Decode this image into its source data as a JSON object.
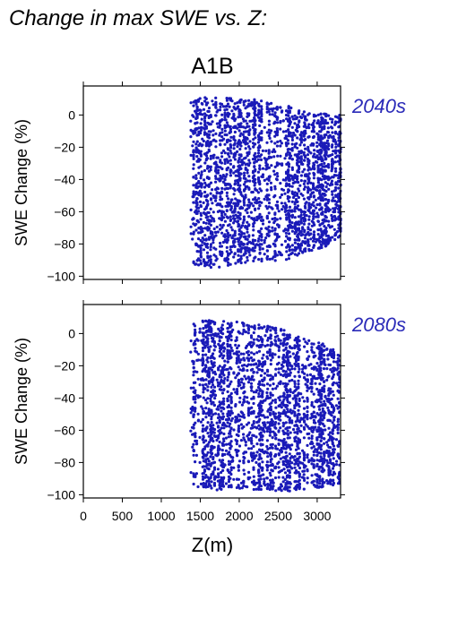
{
  "figure": {
    "title": "Change in max SWE vs. Z:",
    "scenario": "A1B",
    "xlabel": "Z(m)",
    "colors": {
      "points": "#1a1ab8",
      "period_label": "#2a2ab8",
      "axis": "#000000"
    }
  },
  "chart_data": [
    {
      "type": "scatter",
      "period_label": "2040s",
      "ylabel": "SWE Change (%)",
      "xlim": [
        0,
        3300
      ],
      "ylim": [
        -102,
        18
      ],
      "xticks": [
        0,
        500,
        1000,
        1500,
        2000,
        2500,
        3000
      ],
      "yticks": [
        0,
        -20,
        -40,
        -60,
        -80,
        -100
      ],
      "xtick_labels_shown": false,
      "data_summary": {
        "x_min": 1380,
        "x_max": 3300,
        "y_max_by_x": [
          [
            1400,
            8
          ],
          [
            1500,
            11
          ],
          [
            1800,
            11
          ],
          [
            2200,
            10
          ],
          [
            2500,
            9
          ],
          [
            2700,
            4
          ],
          [
            3000,
            1
          ],
          [
            3300,
            0
          ]
        ],
        "y_min_by_x": [
          [
            1400,
            -93
          ],
          [
            1700,
            -95
          ],
          [
            2000,
            -92
          ],
          [
            2300,
            -91
          ],
          [
            2600,
            -90
          ],
          [
            2800,
            -86
          ],
          [
            3100,
            -82
          ],
          [
            3300,
            -75
          ]
        ]
      }
    },
    {
      "type": "scatter",
      "period_label": "2080s",
      "ylabel": "SWE Change (%)",
      "xlim": [
        0,
        3300
      ],
      "ylim": [
        -102,
        18
      ],
      "xticks": [
        0,
        500,
        1000,
        1500,
        2000,
        2500,
        3000
      ],
      "yticks": [
        0,
        -20,
        -40,
        -60,
        -80,
        -100
      ],
      "xtick_labels_shown": true,
      "data_summary": {
        "x_min": 1380,
        "x_max": 3300,
        "y_max_by_x": [
          [
            1400,
            6
          ],
          [
            1500,
            9
          ],
          [
            1800,
            8
          ],
          [
            2200,
            6
          ],
          [
            2500,
            4
          ],
          [
            2800,
            -3
          ],
          [
            3100,
            -6
          ],
          [
            3300,
            -12
          ]
        ],
        "y_min_by_x": [
          [
            1400,
            -95
          ],
          [
            1700,
            -97
          ],
          [
            2000,
            -97
          ],
          [
            2300,
            -97
          ],
          [
            2600,
            -98
          ],
          [
            2800,
            -97
          ],
          [
            3100,
            -95
          ],
          [
            3300,
            -93
          ]
        ]
      }
    }
  ]
}
